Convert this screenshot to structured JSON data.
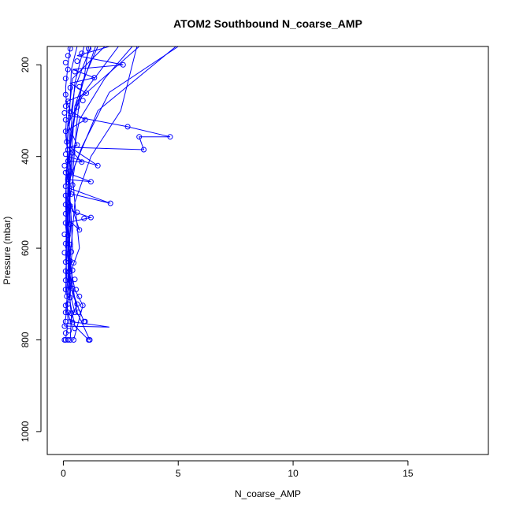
{
  "chart_data": {
    "type": "scatter",
    "title": "ATOM2 Southbound N_coarse_AMP",
    "xlabel": "N_coarse_AMP",
    "ylabel": "Pressure (mbar)",
    "xlim": [
      -0.7,
      18.5
    ],
    "ylim": [
      1050,
      160
    ],
    "y_reversed": true,
    "x_ticks": [
      0,
      5,
      10,
      15
    ],
    "y_ticks": [
      200,
      400,
      600,
      800,
      1000
    ],
    "grid": false,
    "legend": "none",
    "series_color": "#0000ff",
    "points": [
      [
        0.05,
        800
      ],
      [
        0.1,
        800
      ],
      [
        0.2,
        800
      ],
      [
        0.3,
        800
      ],
      [
        0.45,
        800
      ],
      [
        1.1,
        800
      ],
      [
        1.15,
        800
      ],
      [
        0.1,
        785
      ],
      [
        0.25,
        780
      ],
      [
        0.5,
        775
      ],
      [
        0.05,
        770
      ],
      [
        0.1,
        760
      ],
      [
        0.3,
        760
      ],
      [
        0.4,
        762
      ],
      [
        0.9,
        760
      ],
      [
        0.95,
        760
      ],
      [
        0.1,
        740
      ],
      [
        0.2,
        740
      ],
      [
        0.35,
        742
      ],
      [
        0.5,
        740
      ],
      [
        0.65,
        740
      ],
      [
        0.1,
        725
      ],
      [
        0.2,
        722
      ],
      [
        0.6,
        722
      ],
      [
        0.85,
        725
      ],
      [
        0.15,
        705
      ],
      [
        0.3,
        708
      ],
      [
        0.7,
        705
      ],
      [
        0.1,
        690
      ],
      [
        0.4,
        688
      ],
      [
        0.55,
        690
      ],
      [
        0.1,
        670
      ],
      [
        0.3,
        672
      ],
      [
        0.5,
        668
      ],
      [
        0.1,
        650
      ],
      [
        0.25,
        652
      ],
      [
        0.4,
        648
      ],
      [
        0.1,
        630
      ],
      [
        0.3,
        628
      ],
      [
        0.45,
        632
      ],
      [
        0.05,
        610
      ],
      [
        0.2,
        612
      ],
      [
        0.35,
        608
      ],
      [
        0.1,
        590
      ],
      [
        0.3,
        592
      ],
      [
        0.05,
        570
      ],
      [
        0.2,
        572
      ],
      [
        0.7,
        560
      ],
      [
        0.1,
        545
      ],
      [
        0.3,
        548
      ],
      [
        0.9,
        535
      ],
      [
        1.2,
        533
      ],
      [
        0.1,
        525
      ],
      [
        0.6,
        522
      ],
      [
        0.1,
        505
      ],
      [
        0.3,
        508
      ],
      [
        2.05,
        502
      ],
      [
        0.1,
        485
      ],
      [
        0.35,
        482
      ],
      [
        0.1,
        465
      ],
      [
        0.4,
        462
      ],
      [
        0.2,
        450
      ],
      [
        1.2,
        455
      ],
      [
        0.1,
        435
      ],
      [
        0.3,
        432
      ],
      [
        0.05,
        420
      ],
      [
        1.5,
        420
      ],
      [
        0.2,
        410
      ],
      [
        0.8,
        412
      ],
      [
        0.1,
        395
      ],
      [
        0.4,
        392
      ],
      [
        0.2,
        385
      ],
      [
        3.5,
        385
      ],
      [
        0.6,
        375
      ],
      [
        0.15,
        368
      ],
      [
        3.3,
        357
      ],
      [
        4.65,
        357
      ],
      [
        0.1,
        345
      ],
      [
        2.8,
        335
      ],
      [
        0.1,
        320
      ],
      [
        0.95,
        320
      ],
      [
        0.05,
        305
      ],
      [
        0.3,
        302
      ],
      [
        0.1,
        290
      ],
      [
        0.6,
        292
      ],
      [
        0.2,
        280
      ],
      [
        0.85,
        278
      ],
      [
        0.1,
        265
      ],
      [
        1.0,
        262
      ],
      [
        0.3,
        250
      ],
      [
        0.7,
        248
      ],
      [
        0.1,
        230
      ],
      [
        1.35,
        228
      ],
      [
        0.5,
        215
      ],
      [
        0.2,
        210
      ],
      [
        2.6,
        200
      ],
      [
        0.1,
        195
      ],
      [
        0.6,
        192
      ],
      [
        0.2,
        180
      ],
      [
        0.8,
        175
      ],
      [
        0.3,
        165
      ],
      [
        1.1,
        165
      ]
    ],
    "series_paths": [
      [
        [
          0.1,
          800
        ],
        [
          0.2,
          760
        ],
        [
          0.15,
          700
        ],
        [
          0.1,
          650
        ],
        [
          0.2,
          600
        ],
        [
          0.1,
          550
        ],
        [
          0.15,
          500
        ],
        [
          0.1,
          450
        ],
        [
          0.2,
          400
        ],
        [
          0.1,
          350
        ],
        [
          0.15,
          300
        ],
        [
          0.1,
          250
        ],
        [
          0.2,
          200
        ],
        [
          0.3,
          160
        ]
      ],
      [
        [
          0.3,
          800
        ],
        [
          0.35,
          750
        ],
        [
          0.25,
          690
        ],
        [
          0.3,
          630
        ],
        [
          0.2,
          570
        ],
        [
          0.3,
          510
        ],
        [
          0.25,
          450
        ],
        [
          0.3,
          390
        ],
        [
          0.25,
          330
        ],
        [
          0.3,
          270
        ],
        [
          0.35,
          210
        ],
        [
          0.6,
          160
        ]
      ],
      [
        [
          1.1,
          800
        ],
        [
          0.5,
          770
        ],
        [
          0.3,
          720
        ],
        [
          0.2,
          660
        ],
        [
          0.3,
          600
        ],
        [
          0.2,
          540
        ],
        [
          0.3,
          480
        ],
        [
          0.2,
          420
        ],
        [
          0.3,
          360
        ],
        [
          0.4,
          300
        ],
        [
          0.5,
          240
        ],
        [
          0.9,
          160
        ]
      ],
      [
        [
          1.15,
          800
        ],
        [
          0.6,
          740
        ],
        [
          0.4,
          680
        ],
        [
          0.3,
          620
        ],
        [
          0.4,
          560
        ],
        [
          0.5,
          500
        ],
        [
          0.4,
          440
        ],
        [
          0.5,
          380
        ],
        [
          0.6,
          320
        ],
        [
          0.8,
          240
        ],
        [
          1.5,
          160
        ]
      ],
      [
        [
          0.05,
          770
        ],
        [
          2.0,
          772
        ],
        [
          0.3,
          760
        ],
        [
          0.1,
          720
        ]
      ],
      [
        [
          0.45,
          800
        ],
        [
          0.85,
          725
        ],
        [
          0.5,
          690
        ],
        [
          0.3,
          640
        ],
        [
          0.2,
          580
        ],
        [
          0.15,
          520
        ],
        [
          0.2,
          460
        ]
      ],
      [
        [
          0.9,
          760
        ],
        [
          0.4,
          700
        ],
        [
          0.3,
          660
        ],
        [
          0.2,
          600
        ],
        [
          0.25,
          540
        ],
        [
          0.7,
          560
        ],
        [
          0.3,
          500
        ]
      ],
      [
        [
          0.1,
          545
        ],
        [
          1.2,
          533
        ],
        [
          0.4,
          520
        ],
        [
          0.2,
          480
        ],
        [
          2.05,
          502
        ],
        [
          0.3,
          470
        ],
        [
          0.1,
          430
        ]
      ],
      [
        [
          0.2,
          450
        ],
        [
          1.2,
          455
        ],
        [
          0.4,
          440
        ],
        [
          0.2,
          400
        ],
        [
          1.5,
          420
        ],
        [
          0.3,
          380
        ],
        [
          3.5,
          385
        ],
        [
          3.3,
          357
        ],
        [
          4.65,
          357
        ],
        [
          2.8,
          335
        ],
        [
          0.2,
          310
        ]
      ],
      [
        [
          0.1,
          345
        ],
        [
          0.95,
          320
        ],
        [
          0.3,
          300
        ],
        [
          0.15,
          280
        ],
        [
          1.0,
          262
        ],
        [
          0.3,
          240
        ],
        [
          1.35,
          228
        ],
        [
          0.4,
          210
        ],
        [
          2.6,
          200
        ],
        [
          0.6,
          180
        ],
        [
          2.0,
          160
        ]
      ],
      [
        [
          0.2,
          410
        ],
        [
          0.8,
          412
        ],
        [
          0.2,
          380
        ],
        [
          0.6,
          375
        ],
        [
          0.2,
          330
        ],
        [
          0.8,
          270
        ],
        [
          3.3,
          160
        ]
      ],
      [
        [
          0.5,
          740
        ],
        [
          0.3,
          700
        ],
        [
          0.4,
          640
        ],
        [
          0.7,
          600
        ],
        [
          0.5,
          500
        ],
        [
          1.2,
          400
        ],
        [
          2.5,
          300
        ],
        [
          3.2,
          160
        ]
      ],
      [
        [
          0.2,
          700
        ],
        [
          0.1,
          620
        ],
        [
          0.2,
          520
        ],
        [
          0.5,
          420
        ],
        [
          1.5,
          300
        ],
        [
          4.9,
          160
        ]
      ],
      [
        [
          0.3,
          720
        ],
        [
          0.2,
          640
        ],
        [
          0.3,
          560
        ],
        [
          0.2,
          460
        ],
        [
          0.8,
          380
        ],
        [
          2.0,
          260
        ],
        [
          5.0,
          160
        ]
      ],
      [
        [
          0.1,
          600
        ],
        [
          0.2,
          500
        ],
        [
          0.4,
          400
        ],
        [
          0.7,
          320
        ],
        [
          1.8,
          230
        ],
        [
          3.0,
          160
        ]
      ],
      [
        [
          0.1,
          700
        ],
        [
          0.15,
          600
        ],
        [
          0.1,
          500
        ],
        [
          0.2,
          350
        ],
        [
          0.5,
          250
        ],
        [
          1.2,
          160
        ]
      ],
      [
        [
          0.05,
          770
        ],
        [
          0.3,
          680
        ],
        [
          0.2,
          580
        ],
        [
          0.1,
          480
        ],
        [
          0.3,
          380
        ],
        [
          0.6,
          280
        ],
        [
          2.4,
          160
        ]
      ],
      [
        [
          0.2,
          650
        ],
        [
          0.3,
          550
        ],
        [
          0.2,
          450
        ],
        [
          0.15,
          350
        ],
        [
          0.4,
          230
        ],
        [
          1.8,
          160
        ]
      ],
      [
        [
          0.1,
          740
        ],
        [
          0.2,
          690
        ],
        [
          0.4,
          600
        ],
        [
          0.3,
          500
        ],
        [
          0.2,
          420
        ],
        [
          0.4,
          330
        ],
        [
          0.9,
          230
        ],
        [
          1.1,
          160
        ]
      ],
      [
        [
          0.3,
          760
        ],
        [
          0.6,
          722
        ],
        [
          0.3,
          680
        ],
        [
          0.2,
          620
        ],
        [
          0.35,
          540
        ],
        [
          0.25,
          470
        ],
        [
          0.35,
          400
        ],
        [
          0.5,
          290
        ],
        [
          1.4,
          160
        ]
      ]
    ]
  }
}
